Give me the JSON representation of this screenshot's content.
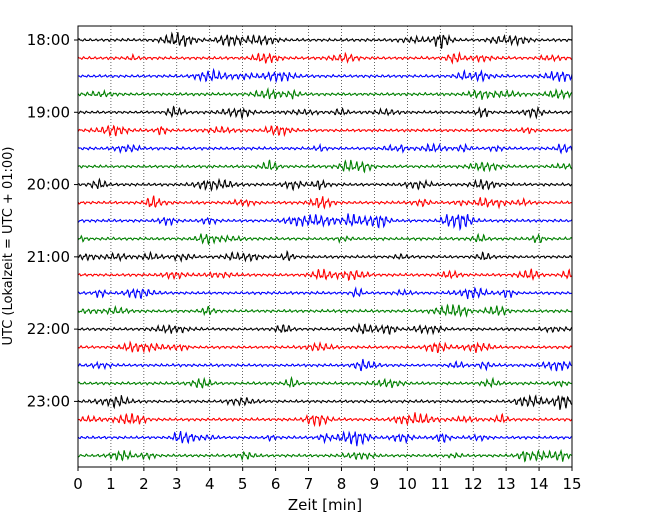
{
  "chart_data": {
    "type": "line",
    "title": "",
    "xlabel": "Zeit  [min]",
    "ylabel": "UTC (Lokalzeit = UTC + 01:00)",
    "xlim": [
      0,
      15
    ],
    "x_ticks": [
      0,
      1,
      2,
      3,
      4,
      5,
      6,
      7,
      8,
      9,
      10,
      11,
      12,
      13,
      14,
      15
    ],
    "grid": "vertical-dotted",
    "y_tick_labels": [
      {
        "label": "18:00",
        "row": 0
      },
      {
        "label": "19:00",
        "row": 4
      },
      {
        "label": "20:00",
        "row": 8
      },
      {
        "label": "21:00",
        "row": 12
      },
      {
        "label": "22:00",
        "row": 16
      },
      {
        "label": "23:00",
        "row": 20
      }
    ],
    "row_count": 24,
    "row_minutes": 15,
    "trace_colors": [
      "#000000",
      "#ff0000",
      "#0000ff",
      "#008000"
    ],
    "traces_note_removed": ""
  }
}
